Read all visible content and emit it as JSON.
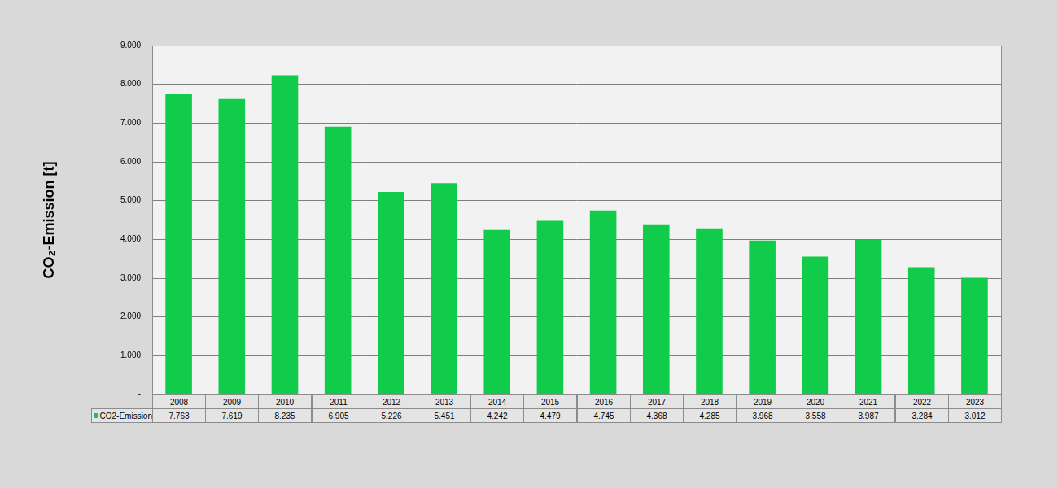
{
  "chart_data": {
    "type": "bar",
    "y_label": "CO₂-Emission [t]",
    "categories": [
      "2008",
      "2009",
      "2010",
      "2011",
      "2012",
      "2013",
      "2014",
      "2015",
      "2016",
      "2017",
      "2018",
      "2019",
      "2020",
      "2021",
      "2022",
      "2023"
    ],
    "series": [
      {
        "name": "CO2-Emission",
        "color": "#11cc4a",
        "values": [
          7763,
          7619,
          8235,
          6905,
          5226,
          5451,
          4242,
          4479,
          4745,
          4368,
          4285,
          3968,
          3558,
          3987,
          3284,
          3012
        ],
        "value_labels": [
          "7.763",
          "7.619",
          "8.235",
          "6.905",
          "5.226",
          "5.451",
          "4.242",
          "4.479",
          "4.745",
          "4.368",
          "4.285",
          "3.968",
          "3.558",
          "3.987",
          "3.284",
          "3.012"
        ]
      }
    ],
    "ylim": [
      0,
      9000
    ],
    "yticks": [
      {
        "value": 0,
        "label": "-"
      },
      {
        "value": 1000,
        "label": "1.000"
      },
      {
        "value": 2000,
        "label": "2.000"
      },
      {
        "value": 3000,
        "label": "3.000"
      },
      {
        "value": 4000,
        "label": "4.000"
      },
      {
        "value": 5000,
        "label": "5.000"
      },
      {
        "value": 6000,
        "label": "6.000"
      },
      {
        "value": 7000,
        "label": "7.000"
      },
      {
        "value": 8000,
        "label": "8.000"
      },
      {
        "value": 9000,
        "label": "9.000"
      }
    ],
    "grid": true
  }
}
